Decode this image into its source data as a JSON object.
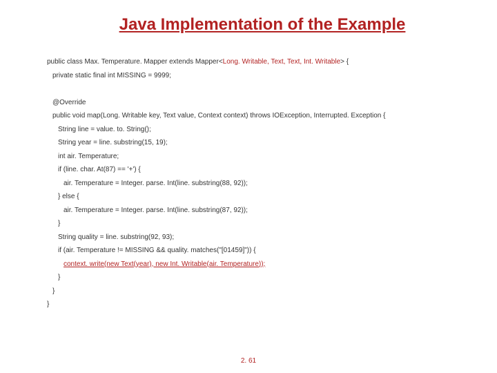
{
  "title": "Java Implementation of the Example",
  "lines": [
    {
      "indent": 0,
      "parts": [
        {
          "t": "public class Max. Temperature. Mapper extends Mapper<"
        },
        {
          "t": "Long. Writable, Text, Text, Int. Writable",
          "style": "red"
        },
        {
          "t": "> {"
        }
      ]
    },
    {
      "indent": 1,
      "parts": [
        {
          "t": "private static final int MISSING = 9999;"
        }
      ]
    },
    {
      "indent": 1,
      "parts": [
        {
          "t": " "
        }
      ]
    },
    {
      "indent": 1,
      "parts": [
        {
          "t": "@Override"
        }
      ]
    },
    {
      "indent": 1,
      "parts": [
        {
          "t": "public void map(Long. Writable key, Text value, Context context) throws IOException, Interrupted. Exception {"
        }
      ]
    },
    {
      "indent": 2,
      "parts": [
        {
          "t": "String line = value. to. String();"
        }
      ]
    },
    {
      "indent": 2,
      "parts": [
        {
          "t": "String year = line. substring(15, 19);"
        }
      ]
    },
    {
      "indent": 2,
      "parts": [
        {
          "t": "int air. Temperature;"
        }
      ]
    },
    {
      "indent": 2,
      "parts": [
        {
          "t": "if (line. char. At(87) == '+') {"
        }
      ]
    },
    {
      "indent": 3,
      "parts": [
        {
          "t": "air. Temperature = Integer. parse. Int(line. substring(88, 92));"
        }
      ]
    },
    {
      "indent": 2,
      "parts": [
        {
          "t": "} else {"
        }
      ]
    },
    {
      "indent": 3,
      "parts": [
        {
          "t": "air. Temperature = Integer. parse. Int(line. substring(87, 92));"
        }
      ]
    },
    {
      "indent": 2,
      "parts": [
        {
          "t": "}"
        }
      ]
    },
    {
      "indent": 2,
      "parts": [
        {
          "t": "String quality = line. substring(92, 93);"
        }
      ]
    },
    {
      "indent": 2,
      "parts": [
        {
          "t": "if (air. Temperature != MISSING && quality. matches(\"[01459]\")) {"
        }
      ]
    },
    {
      "indent": 3,
      "parts": [
        {
          "t": "context. write(new Text(year), new Int. Writable(air. Temperature));",
          "style": "red-underline"
        }
      ]
    },
    {
      "indent": 2,
      "parts": [
        {
          "t": "}"
        }
      ]
    },
    {
      "indent": 1,
      "parts": [
        {
          "t": "}"
        }
      ]
    },
    {
      "indent": 0,
      "parts": [
        {
          "t": "}"
        }
      ]
    }
  ],
  "pageNumber": "2. 61",
  "colors": {
    "title": "#b22222",
    "text": "#333333",
    "highlight": "#b22222",
    "background": "#ffffff"
  }
}
